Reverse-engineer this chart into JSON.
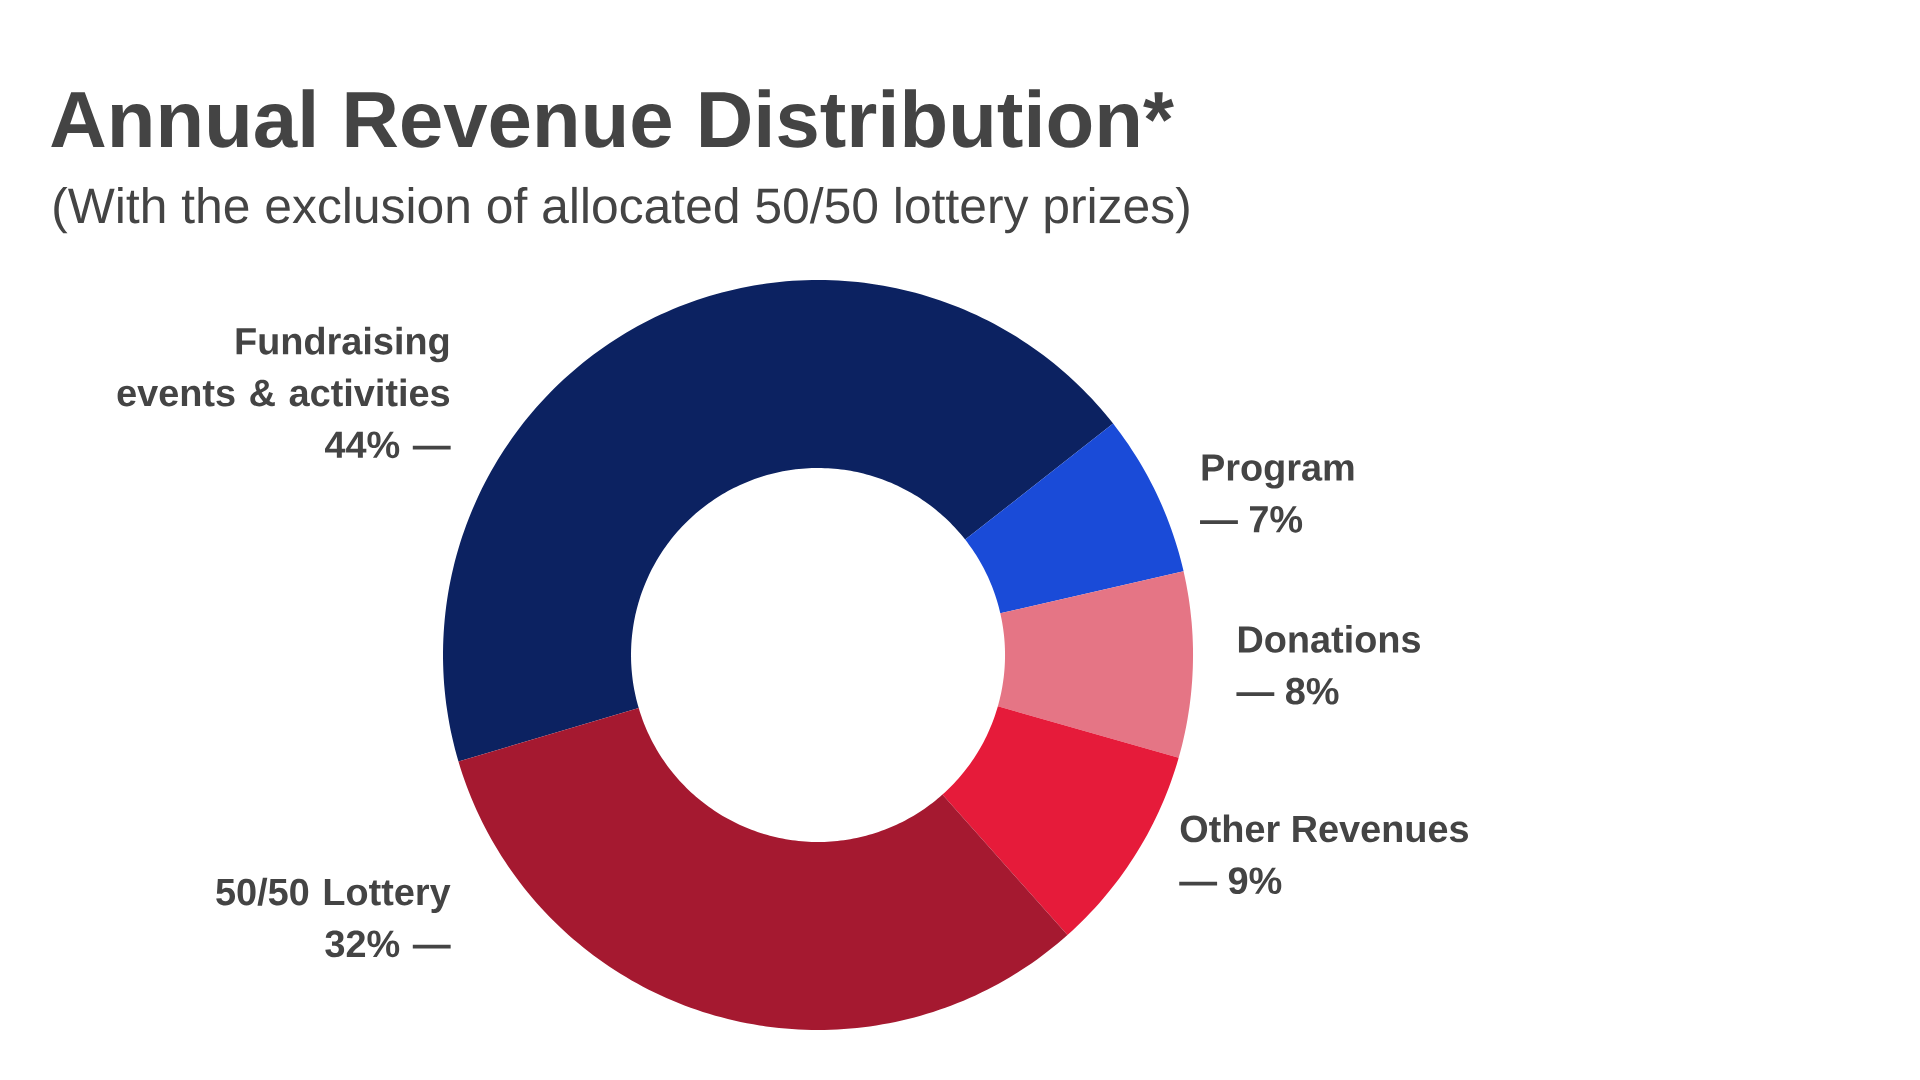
{
  "chart_data": {
    "type": "donut",
    "title": "Annual Revenue Distribution*",
    "subtitle": "(With the exclusion of allocated 50/50 lottery prizes)",
    "categories": [
      "Fundraising events & activities",
      "Program",
      "Donations",
      "Other Revenues",
      "50/50 Lottery"
    ],
    "values": [
      44,
      7,
      8,
      9,
      32
    ],
    "value_labels": [
      "44% —",
      "— 7%",
      "— 8%",
      "— 9%",
      "32% —"
    ],
    "colors": [
      "#0c2261",
      "#1a4bd8",
      "#e57585",
      "#e61b3a",
      "#a51930"
    ]
  }
}
